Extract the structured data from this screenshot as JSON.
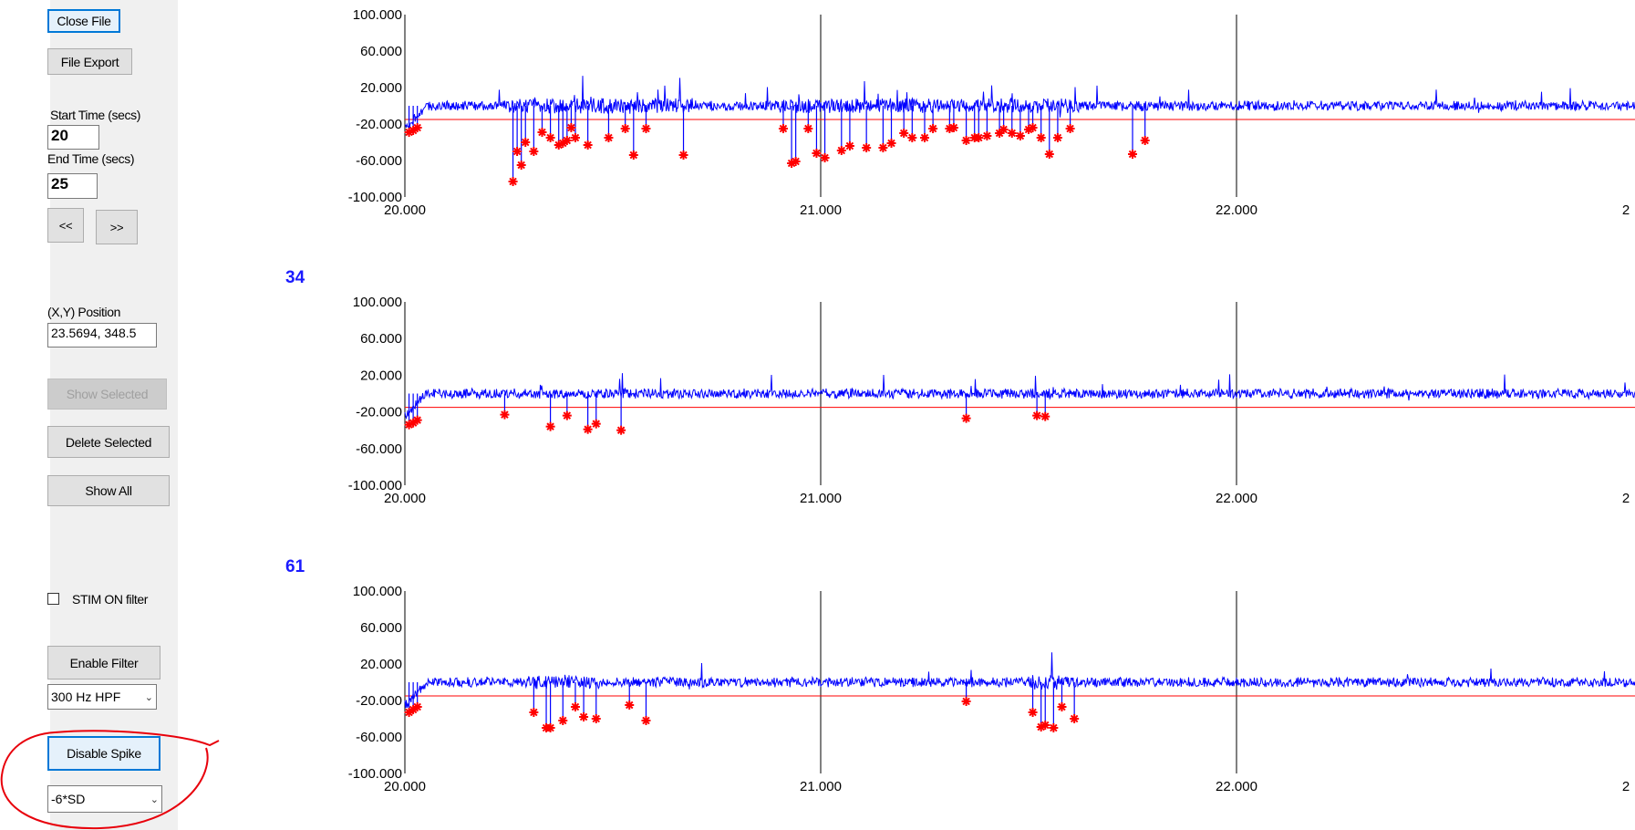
{
  "controls": {
    "close_file": "Close File",
    "file_export": "File Export",
    "start_time_label": "Start Time (secs)",
    "start_time_value": "20",
    "end_time_label": "End Time (secs)",
    "end_time_value": "25",
    "prev": "<<",
    "next": ">>",
    "xy_label": "(X,Y) Position",
    "xy_value": "23.5694, 348.5",
    "show_selected": "Show Selected",
    "delete_selected": "Delete Selected",
    "show_all": "Show All",
    "stim_filter": "STIM ON filter",
    "enable_filter": "Enable Filter",
    "filter_option": "300 Hz HPF",
    "disable_spike": "Disable Spike",
    "threshold_option": "-6*SD"
  },
  "colors": {
    "trace": "#0000ff",
    "threshold": "#ff0000",
    "spike": "#ff0000",
    "annotation": "#e8000b",
    "channel_label": "#1a1aff"
  },
  "chart_data": [
    {
      "type": "line",
      "channel": "",
      "xlim": [
        20,
        23
      ],
      "ylim": [
        -100,
        100
      ],
      "yticks": [
        "100.000",
        "60.000",
        "20.000",
        "-20.000",
        "-60.000",
        "-100.000"
      ],
      "xticks": [
        "20.000",
        "21.000",
        "22.000",
        "2"
      ],
      "threshold": -15,
      "spikes": [
        [
          20.01,
          -29
        ],
        [
          20.02,
          -27
        ],
        [
          20.03,
          -24
        ],
        [
          20.26,
          -83
        ],
        [
          20.27,
          -50
        ],
        [
          20.28,
          -65
        ],
        [
          20.29,
          -40
        ],
        [
          20.31,
          -50
        ],
        [
          20.33,
          -29
        ],
        [
          20.35,
          -35
        ],
        [
          20.37,
          -43
        ],
        [
          20.38,
          -41
        ],
        [
          20.39,
          -38
        ],
        [
          20.4,
          -24
        ],
        [
          20.41,
          -35
        ],
        [
          20.44,
          -43
        ],
        [
          20.49,
          -35
        ],
        [
          20.53,
          -25
        ],
        [
          20.55,
          -54
        ],
        [
          20.58,
          -25
        ],
        [
          20.67,
          -54
        ],
        [
          20.91,
          -25
        ],
        [
          20.93,
          -63
        ],
        [
          20.94,
          -61
        ],
        [
          20.97,
          -25
        ],
        [
          20.99,
          -52
        ],
        [
          21.01,
          -57
        ],
        [
          21.05,
          -49
        ],
        [
          21.07,
          -44
        ],
        [
          21.11,
          -46
        ],
        [
          21.15,
          -46
        ],
        [
          21.17,
          -41
        ],
        [
          21.2,
          -30
        ],
        [
          21.22,
          -35
        ],
        [
          21.25,
          -35
        ],
        [
          21.27,
          -25
        ],
        [
          21.31,
          -25
        ],
        [
          21.32,
          -24
        ],
        [
          21.35,
          -38
        ],
        [
          21.37,
          -35
        ],
        [
          21.38,
          -35
        ],
        [
          21.4,
          -33
        ],
        [
          21.43,
          -30
        ],
        [
          21.44,
          -26
        ],
        [
          21.46,
          -30
        ],
        [
          21.48,
          -33
        ],
        [
          21.5,
          -26
        ],
        [
          21.51,
          -24
        ],
        [
          21.53,
          -35
        ],
        [
          21.55,
          -53
        ],
        [
          21.57,
          -35
        ],
        [
          21.6,
          -25
        ],
        [
          21.75,
          -53
        ],
        [
          21.78,
          -38
        ]
      ]
    },
    {
      "type": "line",
      "channel": "34",
      "xlim": [
        20,
        23
      ],
      "ylim": [
        -100,
        100
      ],
      "yticks": [
        "100.000",
        "60.000",
        "20.000",
        "-20.000",
        "-60.000",
        "-100.000"
      ],
      "xticks": [
        "20.000",
        "21.000",
        "22.000",
        "2"
      ],
      "threshold": -15,
      "spikes": [
        [
          20.01,
          -34
        ],
        [
          20.02,
          -32
        ],
        [
          20.03,
          -29
        ],
        [
          20.24,
          -23
        ],
        [
          20.35,
          -36
        ],
        [
          20.39,
          -24
        ],
        [
          20.44,
          -39
        ],
        [
          20.46,
          -33
        ],
        [
          20.52,
          -40
        ],
        [
          21.35,
          -27
        ],
        [
          21.52,
          -24
        ],
        [
          21.54,
          -25
        ]
      ]
    },
    {
      "type": "line",
      "channel": "61",
      "xlim": [
        20,
        23
      ],
      "ylim": [
        -100,
        100
      ],
      "yticks": [
        "100.000",
        "60.000",
        "20.000",
        "-20.000",
        "-60.000",
        "-100.000"
      ],
      "xticks": [
        "20.000",
        "21.000",
        "22.000",
        "2"
      ],
      "threshold": -15,
      "spikes": [
        [
          20.01,
          -33
        ],
        [
          20.02,
          -30
        ],
        [
          20.03,
          -27
        ],
        [
          20.31,
          -33
        ],
        [
          20.34,
          -50
        ],
        [
          20.35,
          -50
        ],
        [
          20.38,
          -42
        ],
        [
          20.41,
          -27
        ],
        [
          20.43,
          -38
        ],
        [
          20.46,
          -40
        ],
        [
          20.54,
          -25
        ],
        [
          20.58,
          -42
        ],
        [
          21.35,
          -21
        ],
        [
          21.51,
          -33
        ],
        [
          21.53,
          -49
        ],
        [
          21.54,
          -47
        ],
        [
          21.56,
          -50
        ],
        [
          21.58,
          -27
        ],
        [
          21.61,
          -40
        ]
      ]
    }
  ]
}
